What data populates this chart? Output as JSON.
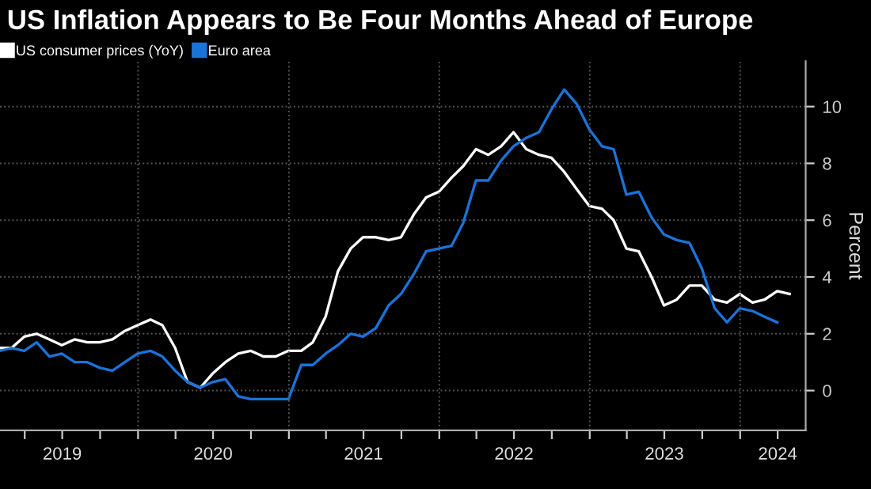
{
  "chart_data": {
    "type": "line",
    "title": "US Inflation Appears to Be Four Months Ahead of Europe",
    "ylabel": "Percent",
    "x": [
      "2019-01-31",
      "2019-02-28",
      "2019-03-31",
      "2019-04-30",
      "2019-05-31",
      "2019-06-30",
      "2019-07-31",
      "2019-08-31",
      "2019-09-30",
      "2019-10-31",
      "2019-11-30",
      "2019-12-31",
      "2020-01-31",
      "2020-02-29",
      "2020-03-31",
      "2020-04-30",
      "2020-05-31",
      "2020-06-30",
      "2020-07-31",
      "2020-08-31",
      "2020-09-30",
      "2020-10-31",
      "2020-11-30",
      "2020-12-31",
      "2021-01-31",
      "2021-02-28",
      "2021-03-31",
      "2021-04-30",
      "2021-05-31",
      "2021-06-30",
      "2021-07-31",
      "2021-08-31",
      "2021-09-30",
      "2021-10-31",
      "2021-11-30",
      "2021-12-31",
      "2022-01-31",
      "2022-02-28",
      "2022-03-31",
      "2022-04-30",
      "2022-05-31",
      "2022-06-30",
      "2022-07-31",
      "2022-08-31",
      "2022-09-30",
      "2022-10-31",
      "2022-11-30",
      "2022-12-31",
      "2023-01-31",
      "2023-02-28",
      "2023-03-31",
      "2023-04-30",
      "2023-05-31",
      "2023-06-30",
      "2023-07-31",
      "2023-08-31",
      "2023-09-30",
      "2023-10-31",
      "2023-11-30",
      "2023-12-31",
      "2024-01-31",
      "2024-02-29",
      "2024-03-31",
      "2024-04-30"
    ],
    "series": [
      {
        "name": "US consumer prices (YoY)",
        "color": "#ffffff",
        "values": [
          1.5,
          1.5,
          1.9,
          2.0,
          1.8,
          1.6,
          1.8,
          1.7,
          1.7,
          1.8,
          2.1,
          2.3,
          2.5,
          2.3,
          1.5,
          0.3,
          0.1,
          0.6,
          1.0,
          1.3,
          1.4,
          1.2,
          1.2,
          1.4,
          1.4,
          1.7,
          2.6,
          4.2,
          5.0,
          5.4,
          5.4,
          5.3,
          5.4,
          6.2,
          6.8,
          7.0,
          7.5,
          7.9,
          8.5,
          8.3,
          8.6,
          9.1,
          8.5,
          8.3,
          8.2,
          7.7,
          7.1,
          6.5,
          6.4,
          6.0,
          5.0,
          4.9,
          4.0,
          3.0,
          3.2,
          3.7,
          3.7,
          3.2,
          3.1,
          3.4,
          3.1,
          3.2,
          3.5,
          3.4
        ]
      },
      {
        "name": "Euro area",
        "color": "#1a73d9",
        "values": [
          1.4,
          1.5,
          1.4,
          1.7,
          1.2,
          1.3,
          1.0,
          1.0,
          0.8,
          0.7,
          1.0,
          1.3,
          1.4,
          1.2,
          0.7,
          0.3,
          0.1,
          0.3,
          0.4,
          -0.2,
          -0.3,
          -0.3,
          -0.3,
          -0.3,
          0.9,
          0.9,
          1.3,
          1.6,
          2.0,
          1.9,
          2.2,
          3.0,
          3.4,
          4.1,
          4.9,
          5.0,
          5.1,
          5.9,
          7.4,
          7.4,
          8.1,
          8.6,
          8.9,
          9.1,
          9.9,
          10.6,
          10.1,
          9.2,
          8.6,
          8.5,
          6.9,
          7.0,
          6.1,
          5.5,
          5.3,
          5.2,
          4.3,
          2.9,
          2.4,
          2.9,
          2.8,
          2.6,
          2.4,
          null
        ]
      }
    ],
    "xlim": [
      "2019-01-31",
      "2024-06-08"
    ],
    "xticks": [
      {
        "value": "2019-04-01",
        "label": null
      },
      {
        "value": "2019-07-01",
        "label": "2019"
      },
      {
        "value": "2019-10-01",
        "label": null
      },
      {
        "value": "2020-01-01",
        "label": null
      },
      {
        "value": "2020-04-01",
        "label": null
      },
      {
        "value": "2020-07-01",
        "label": "2020"
      },
      {
        "value": "2020-10-01",
        "label": null
      },
      {
        "value": "2021-01-01",
        "label": null
      },
      {
        "value": "2021-04-01",
        "label": null
      },
      {
        "value": "2021-07-01",
        "label": "2021"
      },
      {
        "value": "2021-10-01",
        "label": null
      },
      {
        "value": "2022-01-01",
        "label": null
      },
      {
        "value": "2022-04-01",
        "label": null
      },
      {
        "value": "2022-07-01",
        "label": "2022"
      },
      {
        "value": "2022-10-01",
        "label": null
      },
      {
        "value": "2023-01-01",
        "label": null
      },
      {
        "value": "2023-04-01",
        "label": null
      },
      {
        "value": "2023-07-01",
        "label": "2023"
      },
      {
        "value": "2023-10-01",
        "label": null
      },
      {
        "value": "2024-01-01",
        "label": null
      },
      {
        "value": "2024-04-01",
        "label": "2024"
      }
    ],
    "ylim": [
      -1.4,
      11.6
    ],
    "yticks": [
      0,
      2,
      4,
      6,
      8,
      10
    ],
    "grid": "y",
    "legend": "top left",
    "line_style": "solid",
    "marker": "none",
    "ref_lines": [
      {
        "axis": "x",
        "value": "2020-01-01",
        "color": "#555555",
        "line_style": "dotted"
      },
      {
        "axis": "x",
        "value": "2021-01-01",
        "color": "#555555",
        "line_style": "dotted"
      },
      {
        "axis": "x",
        "value": "2022-01-01",
        "color": "#555555",
        "line_style": "dotted"
      },
      {
        "axis": "x",
        "value": "2023-01-01",
        "color": "#555555",
        "line_style": "dotted"
      },
      {
        "axis": "x",
        "value": "2024-01-01",
        "color": "#555555",
        "line_style": "dotted"
      }
    ]
  }
}
